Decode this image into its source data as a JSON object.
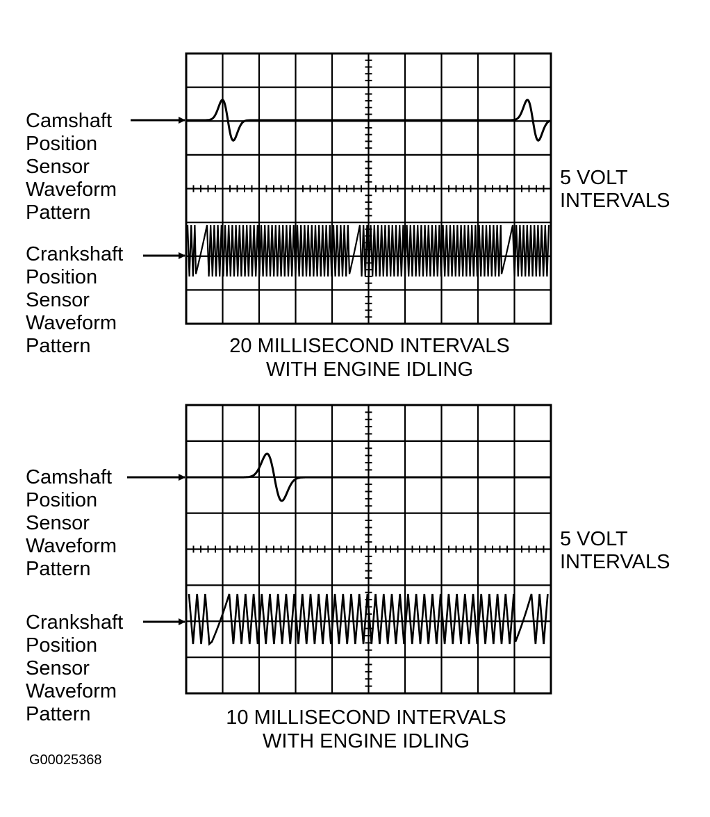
{
  "figure_id": "G00025368",
  "colors": {
    "ink": "#000000",
    "background": "#ffffff"
  },
  "panels": [
    {
      "cam_label": [
        "Camshaft",
        "Position",
        "Sensor",
        "Waveform",
        "Pattern"
      ],
      "crank_label": [
        "Crankshaft",
        "Position",
        "Sensor",
        "Waveform",
        "Pattern"
      ],
      "volt_label": [
        "5 VOLT",
        "INTERVALS"
      ],
      "caption": [
        "20 MILLISECOND INTERVALS",
        "WITH ENGINE IDLING"
      ]
    },
    {
      "cam_label": [
        "Camshaft",
        "Position",
        "Sensor",
        "Waveform",
        "Pattern"
      ],
      "crank_label": [
        "Crankshaft",
        "Position",
        "Sensor",
        "Waveform",
        "Pattern"
      ],
      "volt_label": [
        "5 VOLT",
        "INTERVALS"
      ],
      "caption": [
        "10 MILLISECOND INTERVALS",
        "WITH ENGINE IDLING"
      ]
    }
  ]
}
